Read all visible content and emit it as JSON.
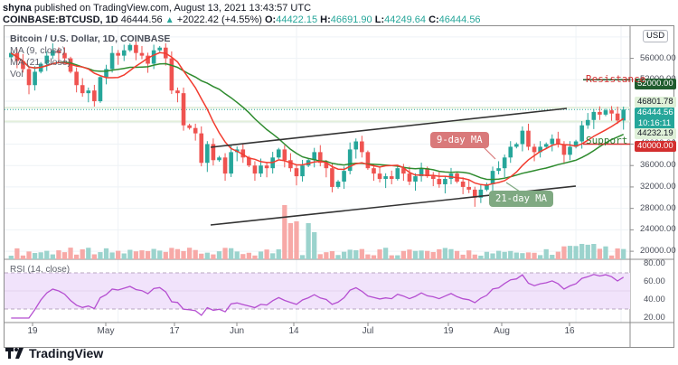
{
  "header": {
    "author": "shyna",
    "published_text": "published on TradingView.com, August 13, 2021 13:43:57 UTC",
    "symbol": "COINBASE:BTCUSD, 1D",
    "last": "46444.56",
    "change": "+2022.42 (+4.55%)",
    "o_label": "O:",
    "o": "44422.15",
    "h_label": "H:",
    "h": "46691.90",
    "l_label": "L:",
    "l": "44249.64",
    "c_label": "C:",
    "c": "46444.56"
  },
  "legend": {
    "title": "Bitcoin / U.S. Dollar, 1D, COINBASE",
    "ma9": "MA (9, close)",
    "ma21": "MA (21, close)",
    "vol": "Vol"
  },
  "price_axis": {
    "currency": "USD",
    "ticks": [
      "60000.00",
      "56000.00",
      "52000.00",
      "48000.00",
      "44000.00",
      "40000.00",
      "36000.00",
      "32000.00",
      "28000.00",
      "24000.00",
      "20000.00"
    ]
  },
  "price_labels": {
    "resistance_value": "52000.00",
    "level_high": "46801.78",
    "current": "46444.56",
    "countdown": "10:16:11",
    "level_low": "44232.19",
    "support_value": "40000.00"
  },
  "annotations": {
    "resistance": "Resistance",
    "support": "Support",
    "ma9_bubble": "9-day MA",
    "ma21_bubble": "21-day MA"
  },
  "rsi": {
    "label": "RSI (14, close)",
    "ticks": [
      "80.00",
      "60.00",
      "40.00",
      "20.00"
    ]
  },
  "time_axis": [
    "19",
    "May",
    "17",
    "Jun",
    "14",
    "Jul",
    "19",
    "Aug",
    "16"
  ],
  "footer": {
    "brand": "TradingView"
  },
  "colors": {
    "up": "#26a69a",
    "down": "#ef5350",
    "ma9": "#f23c2f",
    "ma21": "#2e8b2e",
    "rsi": "#b54fd1",
    "rsi_band": "#f1e3fb",
    "resistance": "#1f5c2e",
    "support": "#d32f2f"
  },
  "chart_data": {
    "type": "candlestick",
    "title": "Bitcoin / U.S. Dollar, 1D, COINBASE",
    "ylabel": "USD",
    "ylim": [
      18500,
      62000
    ],
    "x_ticks": [
      "19 (Apr)",
      "May",
      "17 (May)",
      "Jun",
      "14 (Jun)",
      "Jul",
      "19 (Jul)",
      "Aug",
      "16 (Aug)"
    ],
    "close_approx": [
      57000,
      55500,
      54000,
      51000,
      53500,
      55000,
      56500,
      57500,
      57000,
      56000,
      53500,
      51000,
      49500,
      50000,
      48000,
      52500,
      54000,
      57000,
      56500,
      57500,
      58500,
      57000,
      56500,
      55000,
      57500,
      58000,
      56000,
      50000,
      49500,
      43500,
      43000,
      42000,
      36500,
      40000,
      37000,
      37500,
      34500,
      38500,
      39000,
      37500,
      36000,
      34500,
      36000,
      35500,
      37500,
      39000,
      37000,
      35500,
      34000,
      36000,
      37000,
      38500,
      36500,
      35500,
      32000,
      33000,
      35000,
      39000,
      40500,
      38500,
      35500,
      34500,
      33500,
      34000,
      33500,
      35500,
      34500,
      33000,
      34000,
      35500,
      34000,
      33500,
      32500,
      33500,
      34500,
      33000,
      32000,
      31500,
      30000,
      31500,
      32500,
      35000,
      35500,
      37500,
      39500,
      40000,
      42500,
      39500,
      38500,
      39500,
      40000,
      41000,
      40000,
      38000,
      39500,
      40500,
      43500,
      44500,
      46000,
      45500,
      46300,
      45700,
      44400,
      46444
    ]
  },
  "ma_series": {
    "ma9_label": "MA 9",
    "ma21_label": "MA 21"
  },
  "levels": {
    "resistance": 52000,
    "support": 40000
  }
}
